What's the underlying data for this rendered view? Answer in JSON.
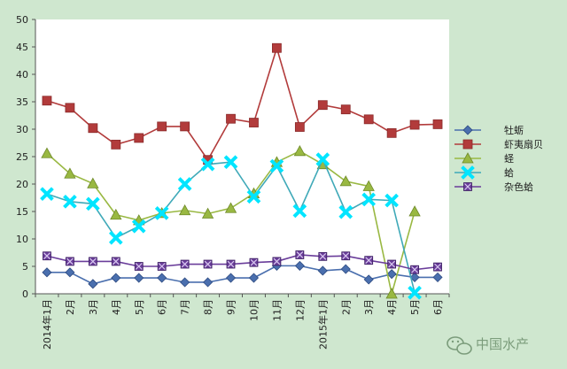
{
  "chart_data": {
    "type": "line",
    "ylim": [
      0,
      50
    ],
    "yticks": [
      0,
      5,
      10,
      15,
      20,
      25,
      30,
      35,
      40,
      45,
      50
    ],
    "grid": false,
    "legend_position": "right",
    "categories": [
      "2014年1月",
      "2月",
      "3月",
      "4月",
      "5月",
      "6月",
      "7月",
      "8月",
      "9月",
      "10月",
      "11月",
      "12月",
      "2015年1月",
      "2月",
      "3月",
      "4月",
      "5月",
      "6月"
    ],
    "series": [
      {
        "name": "牡蛎",
        "color": "#4a6fae",
        "marker": "diamond",
        "values": [
          3.9,
          3.9,
          1.8,
          2.9,
          2.9,
          2.9,
          2.1,
          2.1,
          2.9,
          2.9,
          5.1,
          5.1,
          4.2,
          4.5,
          2.6,
          3.6,
          3.0,
          3.0
        ]
      },
      {
        "name": "虾夷扇贝",
        "color": "#b23b3b",
        "marker": "square",
        "values": [
          35.2,
          33.9,
          30.2,
          27.2,
          28.4,
          30.5,
          30.5,
          24.4,
          31.9,
          31.2,
          44.8,
          30.4,
          34.4,
          33.6,
          31.8,
          29.3,
          30.8,
          30.9
        ]
      },
      {
        "name": "蛏",
        "color": "#99b842",
        "marker": "triangle",
        "values": [
          25.6,
          21.9,
          20.1,
          14.4,
          13.4,
          14.7,
          15.2,
          14.6,
          15.6,
          18.3,
          24.0,
          26.0,
          23.6,
          20.5,
          19.6,
          0,
          15.0,
          null
        ]
      },
      {
        "name": "蛤",
        "color": "#3fa9b8",
        "marker": "x",
        "values": [
          18.2,
          16.8,
          16.4,
          10.2,
          12.3,
          14.7,
          20.0,
          23.6,
          24.0,
          17.7,
          23.3,
          15.1,
          24.5,
          14.9,
          17.2,
          17.0,
          0.2,
          null
        ]
      },
      {
        "name": "杂色蛤",
        "color": "#6a3d9a",
        "marker": "xsquare",
        "values": [
          6.9,
          5.9,
          5.9,
          5.9,
          5.0,
          5.0,
          5.4,
          5.4,
          5.4,
          5.7,
          5.9,
          7.1,
          6.8,
          6.9,
          6.1,
          5.4,
          4.4,
          4.9
        ]
      }
    ]
  },
  "watermark": {
    "text": "中国水产",
    "icon": "wechat-icon"
  }
}
